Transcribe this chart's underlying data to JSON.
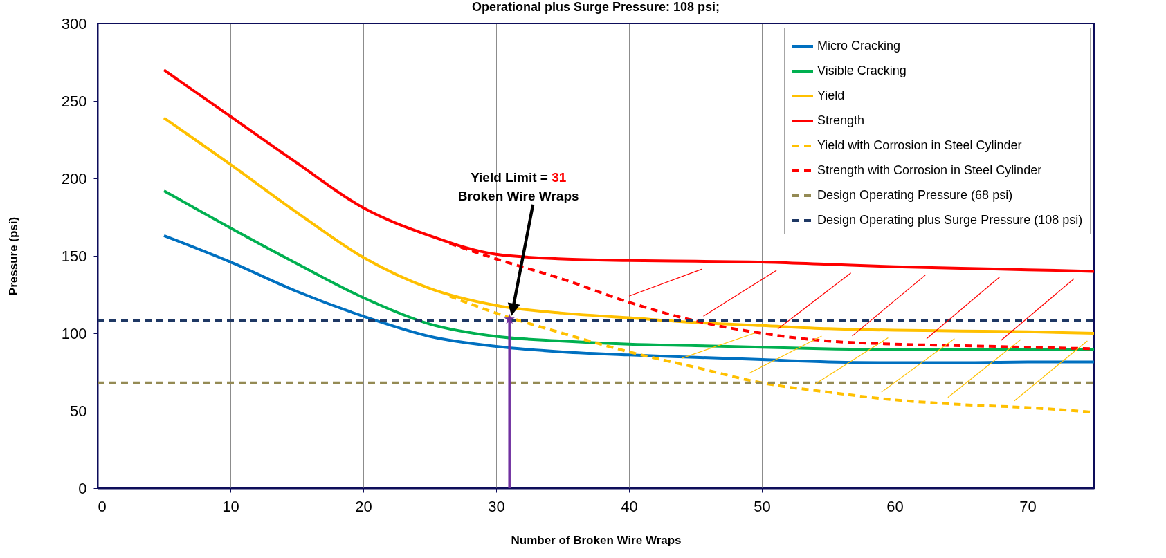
{
  "chart_data": {
    "type": "line",
    "title": "Operational plus Surge Pressure: 108 psi;",
    "xlabel": "Number of Broken Wire Wraps",
    "ylabel": "Pressure (psi)",
    "xlim": [
      0,
      75
    ],
    "ylim": [
      0,
      300
    ],
    "xticks": [
      0,
      10,
      20,
      30,
      40,
      50,
      60,
      70
    ],
    "yticks": [
      0,
      50,
      100,
      150,
      200,
      250,
      300
    ],
    "grid": "x",
    "legend": "top right",
    "line_style": "solid",
    "marker": "none",
    "series": [
      {
        "name": "Micro Cracking",
        "color": "#0070c0",
        "x": [
          5,
          10,
          15,
          20,
          25,
          30,
          35,
          40,
          45,
          50,
          55,
          60,
          65,
          70,
          75
        ],
        "values": [
          163,
          146,
          127,
          111,
          98,
          91.5,
          88,
          86,
          84.5,
          83,
          81.5,
          81,
          81,
          81.5,
          81.5
        ]
      },
      {
        "name": "Visible Cracking",
        "color": "#00b050",
        "x": [
          5,
          10,
          15,
          20,
          25,
          30,
          35,
          40,
          45,
          50,
          55,
          60,
          65,
          70,
          75
        ],
        "values": [
          192,
          168,
          145,
          123,
          106,
          98,
          95,
          93,
          92,
          91,
          90,
          89.5,
          89.5,
          89.5,
          89.5
        ]
      },
      {
        "name": "Yield",
        "color": "#ffc000",
        "x": [
          5,
          10,
          15,
          20,
          25,
          30,
          35,
          40,
          45,
          50,
          55,
          60,
          65,
          70,
          75
        ],
        "values": [
          239,
          209,
          178,
          149,
          129,
          118,
          113,
          110,
          107,
          105,
          103,
          102,
          101.5,
          101,
          100
        ]
      },
      {
        "name": "Strength",
        "color": "#ff0000",
        "x": [
          5,
          10,
          15,
          20,
          25,
          30,
          35,
          40,
          45,
          50,
          55,
          60,
          65,
          70,
          75
        ],
        "values": [
          270,
          240,
          210,
          181,
          163,
          151,
          148,
          147,
          146.5,
          146,
          144.5,
          143,
          142,
          141,
          140
        ]
      },
      {
        "name": "Yield with Corrosion in Steel Cylinder",
        "color": "#ffc000",
        "line_style": "dashed",
        "x": [
          26.5,
          30,
          35,
          40,
          45,
          50,
          55,
          60,
          65,
          70,
          75
        ],
        "values": [
          124,
          113,
          100,
          88,
          78,
          68,
          62,
          57,
          54,
          52,
          49
        ]
      },
      {
        "name": "Strength with Corrosion in Steel Cylinder",
        "color": "#ff0000",
        "line_style": "dashed",
        "x": [
          26.5,
          30,
          35,
          40,
          45,
          50,
          55,
          60,
          65,
          70,
          75
        ],
        "values": [
          158,
          148,
          135,
          120,
          108,
          100,
          95,
          93,
          92,
          91,
          90
        ]
      },
      {
        "type": "line",
        "color": "#7030a0",
        "x": [
          31,
          31
        ],
        "values": [
          0,
          109
        ]
      },
      {
        "type": "scatter",
        "color": "#7030a0",
        "marker": "star",
        "x": [
          31
        ],
        "values": [
          109
        ]
      }
    ],
    "ref_lines": [
      {
        "axis": "y",
        "value": 68,
        "label": "Design Operating Pressure (68 psi)",
        "color": "#948a54",
        "line_style": "dashed"
      },
      {
        "axis": "y",
        "value": 108,
        "label": "Design Operating plus Surge Pressure (108 psi)",
        "color": "#1f3864",
        "line_style": "dashed"
      }
    ],
    "annotations": [
      "Yield Limit = 31\nBroken Wire Wraps"
    ]
  }
}
